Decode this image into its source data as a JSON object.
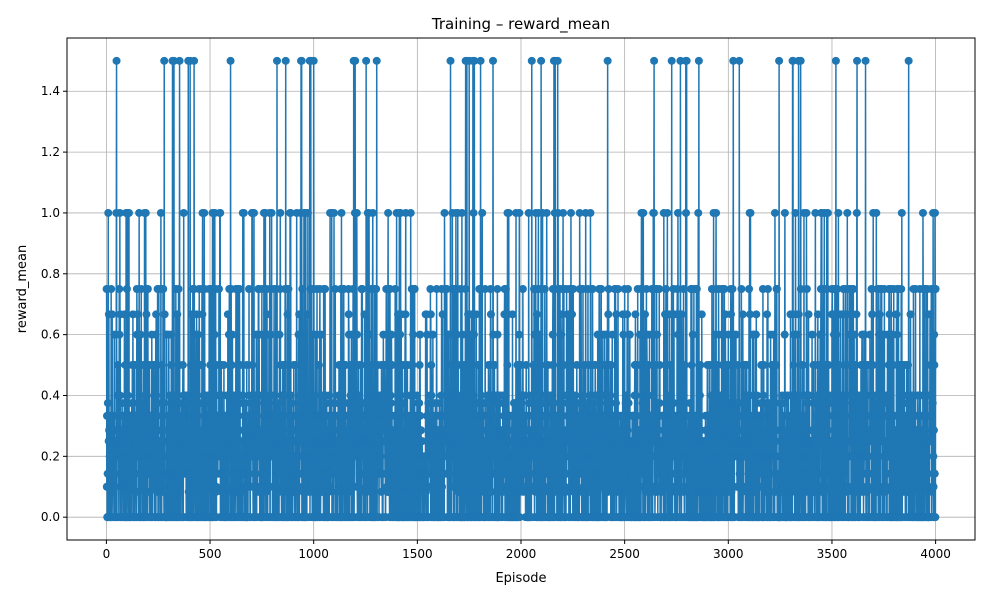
{
  "chart_data": {
    "type": "line",
    "title": "Training – reward_mean",
    "xlabel": "Episode",
    "ylabel": "reward_mean",
    "xlim": [
      -190,
      4190
    ],
    "ylim": [
      -0.075,
      1.575
    ],
    "xticks": [
      0,
      500,
      1000,
      1500,
      2000,
      2500,
      3000,
      3500,
      4000
    ],
    "xtick_labels": [
      "0",
      "500",
      "1000",
      "1500",
      "2000",
      "2500",
      "3000",
      "3500",
      "4000"
    ],
    "yticks": [
      0.0,
      0.2,
      0.4,
      0.6,
      0.8,
      1.0,
      1.2,
      1.4
    ],
    "ytick_labels": [
      "0.0",
      "0.2",
      "0.4",
      "0.6",
      "0.8",
      "1.0",
      "1.2",
      "1.4"
    ],
    "grid": true,
    "legend": "none",
    "marker": "circle",
    "color": "#1f77b4",
    "series": [
      {
        "x_start": 1,
        "x_end": 4000,
        "count": 4000,
        "value_levels": [
          0.0,
          0.0833,
          0.1,
          0.1429,
          0.2,
          0.25,
          0.2857,
          0.3333,
          0.375,
          0.4,
          0.5,
          0.6,
          0.6667,
          0.75,
          1.0,
          1.5
        ],
        "first_values": [
          0.75,
          0.1,
          0.333,
          0.0,
          0.0,
          0.143,
          0.375,
          0.0,
          1.0,
          0.0
        ],
        "last_values": [
          0.0,
          0.286,
          0.6,
          0.5,
          0.0,
          0.143,
          1.0,
          0.75,
          0.0,
          0.75
        ]
      }
    ]
  }
}
